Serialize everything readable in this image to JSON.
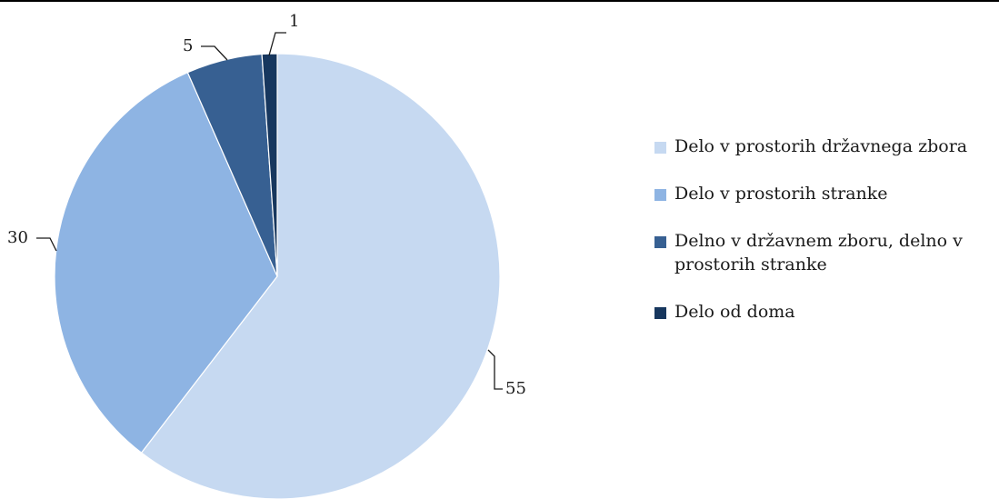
{
  "chart_data": {
    "type": "pie",
    "categories": [
      "Delo v prostorih državnega zbora",
      "Delo v prostorih stranke",
      "Delno v državnem zboru, delno v prostorih stranke",
      "Delo od doma"
    ],
    "values": [
      55,
      30,
      5,
      1
    ],
    "data_labels": [
      "55",
      "30",
      "5",
      "1"
    ],
    "colors": [
      "#c6d9f1",
      "#8eb4e3",
      "#376092",
      "#17375e"
    ],
    "legend_position": "right",
    "start_angle": "top",
    "direction": "clockwise"
  }
}
